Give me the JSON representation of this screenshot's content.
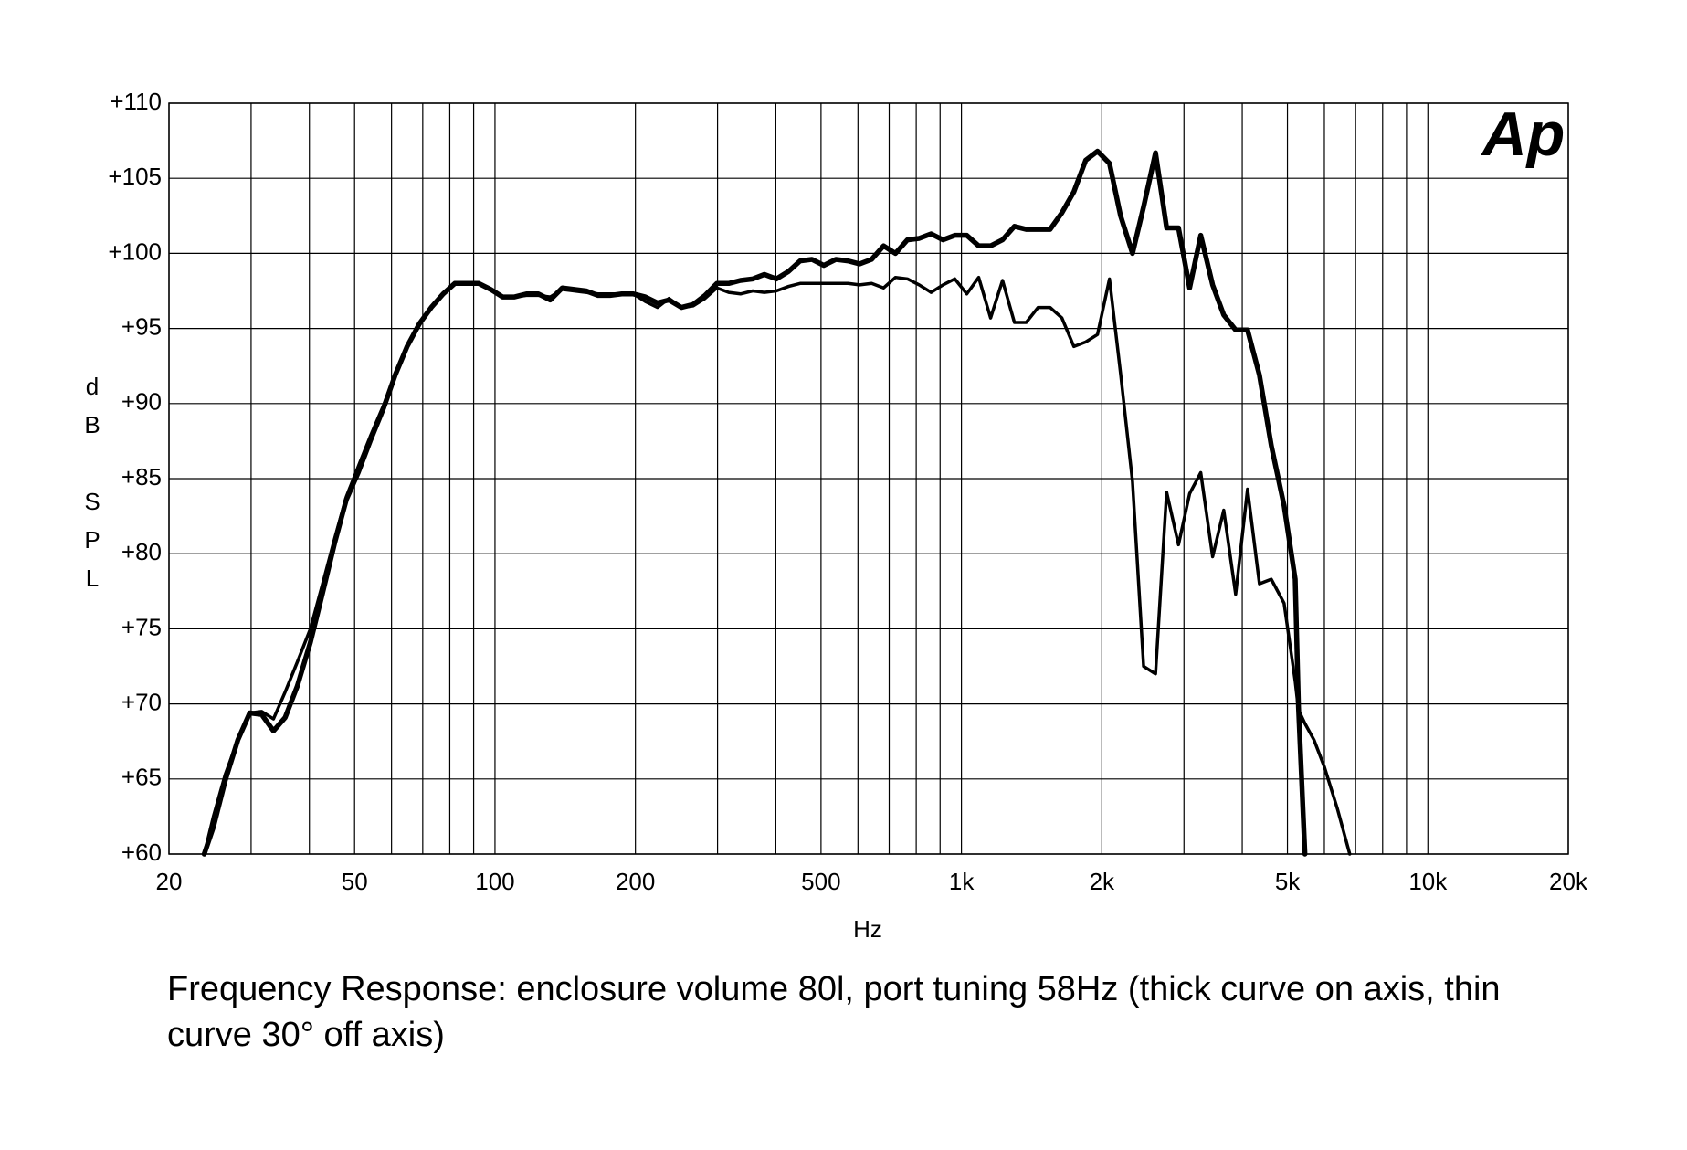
{
  "chart_data": {
    "type": "line",
    "xlabel": "Hz",
    "ylabel": "dB SPL",
    "logo": "Ap",
    "logo_color": "#1f2cf0",
    "caption": "Frequency Response: enclosure volume 80l, port tuning 58Hz (thick curve on axis, thin curve 30° off axis)",
    "xscale": "log",
    "grid": true,
    "xlim": [
      20,
      20000
    ],
    "ylim": [
      60,
      110
    ],
    "xticks": [
      20,
      50,
      100,
      200,
      500,
      {
        "value": 1000,
        "label": "1k"
      },
      {
        "value": 2000,
        "label": "2k"
      },
      {
        "value": 5000,
        "label": "5k"
      },
      {
        "value": 10000,
        "label": "10k"
      },
      {
        "value": 20000,
        "label": "20k"
      }
    ],
    "x_grid": [
      20,
      30,
      40,
      50,
      60,
      70,
      80,
      90,
      100,
      200,
      300,
      400,
      500,
      600,
      700,
      800,
      900,
      1000,
      2000,
      3000,
      4000,
      5000,
      6000,
      7000,
      8000,
      9000,
      10000,
      20000
    ],
    "yticks": [
      {
        "value": 60,
        "label": "+60"
      },
      {
        "value": 65,
        "label": "+65"
      },
      {
        "value": 70,
        "label": "+70"
      },
      {
        "value": 75,
        "label": "+75"
      },
      {
        "value": 80,
        "label": "+80"
      },
      {
        "value": 85,
        "label": "+85"
      },
      {
        "value": 90,
        "label": "+90"
      },
      {
        "value": 95,
        "label": "+95"
      },
      {
        "value": 100,
        "label": "+100"
      },
      {
        "value": 105,
        "label": "+105"
      },
      {
        "value": 110,
        "label": "+110"
      }
    ],
    "x": [
      23.8,
      24.9,
      26.4,
      28.1,
      29.8,
      31.6,
      33.5,
      35.5,
      37.7,
      40.2,
      42.7,
      45.3,
      48,
      50.9,
      54,
      57.7,
      61.1,
      64.8,
      68.8,
      73,
      77.4,
      82,
      87,
      92.3,
      97.9,
      103.8,
      110.1,
      116.8,
      123.9,
      131.4,
      139.4,
      147.8,
      156.8,
      166.3,
      176.4,
      187,
      198,
      210,
      223,
      236,
      251,
      266,
      282,
      299,
      317,
      336,
      357,
      378,
      401,
      426,
      451,
      478,
      507,
      538,
      571,
      605,
      642,
      681,
      722,
      766,
      812,
      861,
      913,
      968,
      1027,
      1089,
      1155,
      1225,
      1299,
      1377,
      1460,
      1549,
      1642,
      1742,
      1847,
      1958,
      2077,
      2194,
      2327,
      2458,
      2607,
      2754,
      2920,
      3085,
      3259,
      3456,
      3651,
      3872,
      4106,
      4354,
      4617,
      4918,
      5195,
      5280,
      5450,
      5700,
      6000,
      6400,
      6800
    ],
    "series": [
      {
        "color": "#000000",
        "line_width": 5.5,
        "values": [
          60,
          61.8,
          64.9,
          67.6,
          69.4,
          69.3,
          68.2,
          69.1,
          71.2,
          74.1,
          77.4,
          80.7,
          83.6,
          85.4,
          87.5,
          89.7,
          91.9,
          93.8,
          95.3,
          96.4,
          97.3,
          98.0,
          98.0,
          98.0,
          97.6,
          97.1,
          97.1,
          97.3,
          97.3,
          96.9,
          97.7,
          97.6,
          97.5,
          97.2,
          97.2,
          97.3,
          97.3,
          97.1,
          96.7,
          96.9,
          96.4,
          96.6,
          97.2,
          98.0,
          98.0,
          98.2,
          98.3,
          98.6,
          98.3,
          98.8,
          99.5,
          99.6,
          99.2,
          99.6,
          99.5,
          99.3,
          99.6,
          100.5,
          100.0,
          100.9,
          101.0,
          101.3,
          100.9,
          101.2,
          101.2,
          100.5,
          100.5,
          100.9,
          101.8,
          101.6,
          101.6,
          101.6,
          102.7,
          104.1,
          106.2,
          106.8,
          106.0,
          102.5,
          100.0,
          103.1,
          106.7,
          101.7,
          101.7,
          97.7,
          101.2,
          97.9,
          95.9,
          94.9,
          94.9,
          91.9,
          87.2,
          83.2,
          78.3,
          69.8,
          60,
          null,
          null,
          null,
          null
        ]
      },
      {
        "color": "#000000",
        "line_width": 3.5,
        "values": [
          60,
          62.5,
          65.3,
          67.6,
          69.4,
          69.5,
          69.0,
          70.8,
          72.8,
          75.0,
          78.0,
          81.0,
          83.8,
          85.8,
          87.8,
          89.9,
          92.0,
          93.8,
          95.3,
          96.4,
          97.3,
          98.0,
          98.0,
          98.0,
          97.6,
          97.1,
          97.1,
          97.2,
          97.2,
          97.1,
          97.6,
          97.5,
          97.4,
          97.3,
          97.3,
          97.3,
          97.3,
          96.8,
          96.4,
          97.0,
          96.4,
          96.5,
          97.0,
          97.7,
          97.4,
          97.3,
          97.5,
          97.4,
          97.5,
          97.8,
          98.0,
          98.0,
          98.0,
          98.0,
          98.0,
          97.9,
          98.0,
          97.7,
          98.4,
          98.3,
          97.9,
          97.4,
          97.9,
          98.3,
          97.3,
          98.4,
          95.7,
          98.2,
          95.4,
          95.4,
          96.4,
          96.4,
          95.7,
          93.8,
          94.1,
          94.6,
          98.3,
          92.0,
          84.8,
          72.5,
          72.0,
          84.1,
          80.6,
          84.0,
          85.4,
          79.8,
          82.9,
          77.3,
          84.3,
          78.0,
          78.3,
          76.7,
          71.5,
          69.6,
          68.7,
          67.6,
          65.8,
          63.0,
          60
        ]
      }
    ]
  }
}
